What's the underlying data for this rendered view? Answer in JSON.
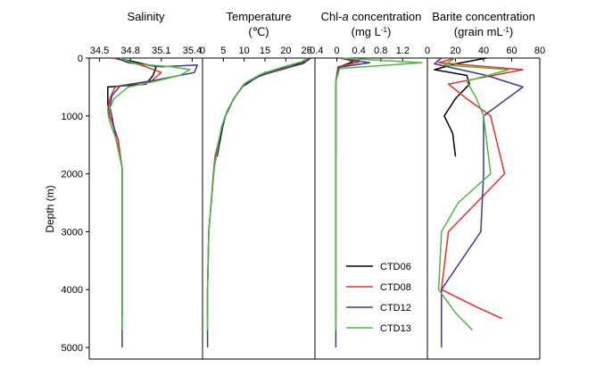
{
  "chart_data": {
    "type": "line",
    "ylabel": "Depth (m)",
    "yticks": [
      0,
      1000,
      2000,
      3000,
      4000,
      5000
    ],
    "ylim": [
      0,
      5200
    ],
    "colors": {
      "CTD06": "#000000",
      "CTD08": "#e8302a",
      "CTD12": "#3c3b8f",
      "CTD13": "#4db844"
    },
    "legend": [
      {
        "name": "CTD06",
        "label": "CTD06"
      },
      {
        "name": "CTD08",
        "label": "CTD08"
      },
      {
        "name": "CTD12",
        "label": "CTD12"
      },
      {
        "name": "CTD13",
        "label": "CTD13"
      }
    ],
    "panels": [
      {
        "id": "salinity",
        "title": "Salinity",
        "title_line2": "",
        "xlim": [
          34.4,
          35.5
        ],
        "xticks": [
          34.5,
          34.8,
          35.1,
          35.4
        ],
        "xtick_labels": [
          "34.5",
          "34.8",
          "35.1",
          "35.4"
        ],
        "series": [
          {
            "name": "CTD06",
            "points": [
              [
                34.62,
                0
              ],
              [
                34.72,
                20
              ],
              [
                34.8,
                50
              ],
              [
                35.05,
                150
              ],
              [
                35.02,
                300
              ],
              [
                34.95,
                450
              ],
              [
                34.58,
                500
              ],
              [
                34.58,
                800
              ],
              [
                34.6,
                1000
              ],
              [
                34.68,
                1400
              ],
              [
                34.7,
                1700
              ]
            ]
          },
          {
            "name": "CTD08",
            "points": [
              [
                34.62,
                0
              ],
              [
                34.72,
                30
              ],
              [
                34.78,
                60
              ],
              [
                34.95,
                150
              ],
              [
                35.1,
                250
              ],
              [
                35.0,
                400
              ],
              [
                34.65,
                500
              ],
              [
                34.6,
                700
              ],
              [
                34.58,
                900
              ],
              [
                34.62,
                1100
              ],
              [
                34.68,
                1400
              ],
              [
                34.72,
                1900
              ],
              [
                34.72,
                3000
              ],
              [
                34.72,
                4000
              ],
              [
                34.72,
                4500
              ]
            ]
          },
          {
            "name": "CTD12",
            "points": [
              [
                34.66,
                0
              ],
              [
                34.78,
                80
              ],
              [
                35.1,
                150
              ],
              [
                35.45,
                120
              ],
              [
                35.42,
                250
              ],
              [
                35.05,
                380
              ],
              [
                34.7,
                480
              ],
              [
                34.62,
                650
              ],
              [
                34.6,
                850
              ],
              [
                34.62,
                1000
              ],
              [
                34.66,
                1400
              ],
              [
                34.72,
                1900
              ],
              [
                34.72,
                3000
              ],
              [
                34.72,
                4000
              ],
              [
                34.72,
                5000
              ]
            ]
          },
          {
            "name": "CTD13",
            "points": [
              [
                34.7,
                0
              ],
              [
                34.85,
                100
              ],
              [
                35.2,
                150
              ],
              [
                35.38,
                200
              ],
              [
                35.28,
                300
              ],
              [
                35.0,
                420
              ],
              [
                34.78,
                500
              ],
              [
                34.64,
                700
              ],
              [
                34.58,
                950
              ],
              [
                34.6,
                1100
              ],
              [
                34.66,
                1400
              ],
              [
                34.72,
                1900
              ],
              [
                34.72,
                3000
              ],
              [
                34.72,
                4000
              ],
              [
                34.72,
                4700
              ]
            ]
          }
        ]
      },
      {
        "id": "temperature",
        "title": "Temperature",
        "title_line2": "(℃)",
        "xlim": [
          0,
          27
        ],
        "xticks": [
          0,
          5,
          10,
          15,
          20,
          25
        ],
        "xtick_labels": [
          "0",
          "5",
          "10",
          "15",
          "20",
          "25"
        ],
        "series": [
          {
            "name": "CTD06",
            "points": [
              [
                26,
                0
              ],
              [
                25,
                50
              ],
              [
                21,
                150
              ],
              [
                15,
                250
              ],
              [
                12,
                380
              ],
              [
                9.5,
                500
              ],
              [
                7.5,
                700
              ],
              [
                5.5,
                1000
              ],
              [
                4.8,
                1200
              ],
              [
                4,
                1500
              ],
              [
                3.5,
                1700
              ]
            ]
          },
          {
            "name": "CTD08",
            "points": [
              [
                25.5,
                0
              ],
              [
                24.5,
                80
              ],
              [
                20,
                180
              ],
              [
                14,
                300
              ],
              [
                10,
                450
              ],
              [
                8,
                650
              ],
              [
                6,
                900
              ],
              [
                5,
                1100
              ],
              [
                3,
                1700
              ],
              [
                2.6,
                2000
              ],
              [
                1.5,
                3000
              ],
              [
                1.2,
                4000
              ],
              [
                1.2,
                4500
              ]
            ]
          },
          {
            "name": "CTD12",
            "points": [
              [
                26,
                0
              ],
              [
                24,
                100
              ],
              [
                18,
                200
              ],
              [
                13.5,
                320
              ],
              [
                10,
                450
              ],
              [
                7.5,
                700
              ],
              [
                5.5,
                1000
              ],
              [
                4,
                1400
              ],
              [
                2.8,
                1900
              ],
              [
                1.5,
                3000
              ],
              [
                1.2,
                4000
              ],
              [
                1.2,
                5000
              ]
            ]
          },
          {
            "name": "CTD13",
            "points": [
              [
                25,
                0
              ],
              [
                24,
                60
              ],
              [
                19,
                160
              ],
              [
                14,
                280
              ],
              [
                10.5,
                420
              ],
              [
                8,
                650
              ],
              [
                6,
                900
              ],
              [
                4.5,
                1200
              ],
              [
                2.8,
                1900
              ],
              [
                1.5,
                3000
              ],
              [
                1.2,
                4000
              ],
              [
                1.2,
                4700
              ]
            ]
          }
        ]
      },
      {
        "id": "chl",
        "title_parts": [
          "Chl-",
          "a",
          " concentration"
        ],
        "unit_parts": [
          "(mg L",
          "-1",
          ")"
        ],
        "xlim": [
          -0.4,
          1.65
        ],
        "xticks": [
          -0.4,
          0,
          0.4,
          0.8,
          1.2
        ],
        "xtick_labels": [
          "-0.4",
          "0",
          "0.4",
          "0.8",
          "1.2"
        ],
        "series": [
          {
            "name": "CTD06",
            "points": [
              [
                0.1,
                0
              ],
              [
                0.3,
                60
              ],
              [
                0.05,
                150
              ],
              [
                -0.02,
                400
              ],
              [
                -0.02,
                1700
              ]
            ]
          },
          {
            "name": "CTD08",
            "points": [
              [
                0.05,
                0
              ],
              [
                0.4,
                70
              ],
              [
                0.02,
                150
              ],
              [
                -0.02,
                400
              ],
              [
                -0.02,
                4500
              ]
            ]
          },
          {
            "name": "CTD12",
            "points": [
              [
                0.08,
                0
              ],
              [
                0.6,
                80
              ],
              [
                0.03,
                160
              ],
              [
                -0.02,
                400
              ],
              [
                -0.02,
                5000
              ]
            ]
          },
          {
            "name": "CTD13",
            "points": [
              [
                0.1,
                0
              ],
              [
                1.55,
                80
              ],
              [
                0.05,
                180
              ],
              [
                -0.02,
                400
              ],
              [
                -0.02,
                4700
              ]
            ]
          }
        ]
      },
      {
        "id": "barite",
        "title": "Barite concentration",
        "unit_parts": [
          "(grain mL",
          "-1",
          ")"
        ],
        "xlim": [
          0,
          80
        ],
        "xticks": [
          0,
          20,
          40,
          60,
          80
        ],
        "xtick_labels": [
          "0",
          "20",
          "40",
          "60",
          "80"
        ],
        "series": [
          {
            "name": "CTD06",
            "points": [
              [
                42,
                0
              ],
              [
                20,
                100
              ],
              [
                5,
                200
              ],
              [
                28,
                300
              ],
              [
                30,
                450
              ],
              [
                20,
                700
              ],
              [
                12,
                1000
              ],
              [
                18,
                1300
              ],
              [
                20,
                1700
              ]
            ]
          },
          {
            "name": "CTD08",
            "points": [
              [
                20,
                0
              ],
              [
                8,
                80
              ],
              [
                68,
                200
              ],
              [
                15,
                450
              ],
              [
                28,
                700
              ],
              [
                45,
                1000
              ],
              [
                55,
                2000
              ],
              [
                15,
                3000
              ],
              [
                10,
                4000
              ],
              [
                35,
                4300
              ],
              [
                53,
                4500
              ]
            ]
          },
          {
            "name": "CTD12",
            "points": [
              [
                10,
                0
              ],
              [
                5,
                100
              ],
              [
                42,
                300
              ],
              [
                68,
                500
              ],
              [
                40,
                1000
              ],
              [
                40,
                2000
              ],
              [
                38,
                3000
              ],
              [
                10,
                4000
              ],
              [
                10,
                5000
              ]
            ]
          },
          {
            "name": "CTD13",
            "points": [
              [
                20,
                0
              ],
              [
                12,
                120
              ],
              [
                58,
                200
              ],
              [
                28,
                400
              ],
              [
                35,
                700
              ],
              [
                40,
                1000
              ],
              [
                45,
                2000
              ],
              [
                22,
                2500
              ],
              [
                10,
                3000
              ],
              [
                8,
                4000
              ],
              [
                20,
                4400
              ],
              [
                32,
                4700
              ]
            ]
          }
        ]
      }
    ]
  }
}
